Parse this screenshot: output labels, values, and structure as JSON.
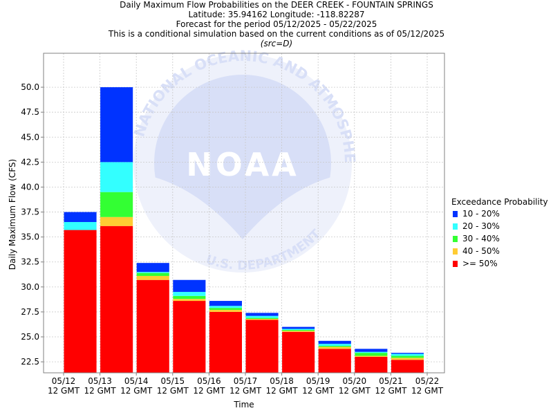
{
  "titles": {
    "line1": "Daily Maximum Flow Probabilities on the DEER CREEK - FOUNTAIN SPRINGS",
    "line2": "Latitude: 35.94162 Longitude: -118.82287",
    "line3": "Forecast for the period 05/12/2025 - 05/22/2025",
    "line4": "This is a conditional simulation based on the current conditions as of 05/12/2025",
    "line5": "(src=D)"
  },
  "watermark": {
    "logo_text": "NOAA",
    "ring_top_text": "NATIONAL OCEANIC AND ATMOSPHERIC ADMINISTRATION",
    "ring_bottom_text": "U.S. DEPARTMENT OF COMMERCE"
  },
  "legend": {
    "title": "Exceedance Probability",
    "items": [
      {
        "label": "10 - 20%",
        "color": "#0033ff"
      },
      {
        "label": "20 - 30%",
        "color": "#33ffff"
      },
      {
        "label": "30 - 40%",
        "color": "#33ff33"
      },
      {
        "label": "40 - 50%",
        "color": "#ffcc33"
      },
      {
        "label": ">= 50%",
        "color": "#ff0000"
      }
    ]
  },
  "chart_data": {
    "type": "bar",
    "stacked": true,
    "title": "Daily Maximum Flow Probabilities on the DEER CREEK - FOUNTAIN SPRINGS",
    "xlabel": "Time",
    "ylabel": "Daily Maximum Flow (CFS)",
    "ylim": [
      21.4,
      53.4
    ],
    "yticks": [
      22.5,
      25.0,
      27.5,
      30.0,
      32.5,
      35.0,
      37.5,
      40.0,
      42.5,
      45.0,
      47.5,
      50.0
    ],
    "grid": true,
    "legend_position": "right",
    "x_ticks": [
      {
        "date": "05/12",
        "time": "12 GMT"
      },
      {
        "date": "05/13",
        "time": "12 GMT"
      },
      {
        "date": "05/14",
        "time": "12 GMT"
      },
      {
        "date": "05/15",
        "time": "12 GMT"
      },
      {
        "date": "05/16",
        "time": "12 GMT"
      },
      {
        "date": "05/17",
        "time": "12 GMT"
      },
      {
        "date": "05/18",
        "time": "12 GMT"
      },
      {
        "date": "05/19",
        "time": "12 GMT"
      },
      {
        "date": "05/20",
        "time": "12 GMT"
      },
      {
        "date": "05/21",
        "time": "12 GMT"
      },
      {
        "date": "05/22",
        "time": "12 GMT"
      }
    ],
    "bars": [
      {
        "from": "05/12",
        "to": "05/13",
        "levels": {
          "ge50": 35.7,
          "p40_50": 35.7,
          "p30_40": 35.7,
          "p20_30": 36.5,
          "p10_20": 37.5
        }
      },
      {
        "from": "05/13",
        "to": "05/14",
        "levels": {
          "ge50": 36.1,
          "p40_50": 37.0,
          "p30_40": 39.5,
          "p20_30": 42.5,
          "p10_20": 50.0
        }
      },
      {
        "from": "05/14",
        "to": "05/15",
        "levels": {
          "ge50": 30.7,
          "p40_50": 31.1,
          "p30_40": 31.4,
          "p20_30": 31.5,
          "p10_20": 32.4
        }
      },
      {
        "from": "05/15",
        "to": "05/16",
        "levels": {
          "ge50": 28.6,
          "p40_50": 28.8,
          "p30_40": 29.1,
          "p20_30": 29.5,
          "p10_20": 30.7
        }
      },
      {
        "from": "05/16",
        "to": "05/17",
        "levels": {
          "ge50": 27.5,
          "p40_50": 27.7,
          "p30_40": 27.9,
          "p20_30": 28.1,
          "p10_20": 28.6
        }
      },
      {
        "from": "05/17",
        "to": "05/18",
        "levels": {
          "ge50": 26.7,
          "p40_50": 26.8,
          "p30_40": 26.9,
          "p20_30": 27.1,
          "p10_20": 27.4
        }
      },
      {
        "from": "05/18",
        "to": "05/19",
        "levels": {
          "ge50": 25.5,
          "p40_50": 25.6,
          "p30_40": 25.7,
          "p20_30": 25.8,
          "p10_20": 26.0
        }
      },
      {
        "from": "05/19",
        "to": "05/20",
        "levels": {
          "ge50": 23.8,
          "p40_50": 24.0,
          "p30_40": 24.1,
          "p20_30": 24.3,
          "p10_20": 24.6
        }
      },
      {
        "from": "05/20",
        "to": "05/21",
        "levels": {
          "ge50": 23.0,
          "p40_50": 23.1,
          "p30_40": 23.4,
          "p20_30": 23.5,
          "p10_20": 23.8
        }
      },
      {
        "from": "05/21",
        "to": "05/22",
        "levels": {
          "ge50": 22.7,
          "p40_50": 22.9,
          "p30_40": 23.1,
          "p20_30": 23.3,
          "p10_20": 23.4
        }
      }
    ],
    "series_order": [
      {
        "key": "ge50",
        "name": ">= 50%",
        "color": "#ff0000"
      },
      {
        "key": "p40_50",
        "name": "40 - 50%",
        "color": "#ffcc33"
      },
      {
        "key": "p30_40",
        "name": "30 - 40%",
        "color": "#33ff33"
      },
      {
        "key": "p20_30",
        "name": "20 - 30%",
        "color": "#33ffff"
      },
      {
        "key": "p10_20",
        "name": "10 - 20%",
        "color": "#0033ff"
      }
    ]
  }
}
